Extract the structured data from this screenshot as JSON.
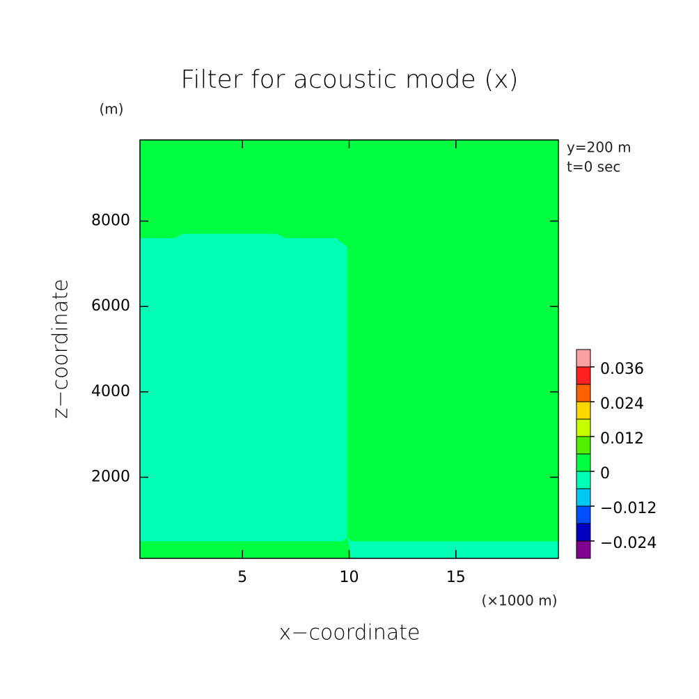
{
  "chart_data": {
    "type": "contour",
    "title": "Filter for acoustic mode (x)",
    "y_unit": "(m)",
    "x_unit": "(×1000 m)",
    "xlabel": "x−coordinate",
    "ylabel": "z−coordinate",
    "annotations": [
      "y=200 m",
      "t=0 sec"
    ],
    "xlim": [
      0.2,
      19.8
    ],
    "ylim": [
      100,
      9900
    ],
    "xticks": [
      5,
      10,
      15
    ],
    "yticks": [
      2000,
      4000,
      6000,
      8000
    ],
    "background_color": "#00ff40",
    "regions": [
      {
        "color": "#00ffb4",
        "x": [
          0.2,
          1.8,
          2.2,
          6.6,
          7.0,
          9.4,
          9.9,
          9.9,
          9.7,
          0.2
        ],
        "z": [
          7600,
          7600,
          7700,
          7700,
          7600,
          7600,
          7400,
          600,
          500,
          500
        ]
      },
      {
        "color": "#00ffb4",
        "x": [
          9.9,
          10.1,
          19.8,
          19.8,
          10.1
        ],
        "z": [
          600,
          500,
          500,
          100,
          100
        ]
      }
    ],
    "levels": [
      -0.03,
      -0.024,
      -0.018,
      -0.012,
      -0.006,
      0,
      0.006,
      0.012,
      0.018,
      0.024,
      0.03,
      0.036,
      0.042
    ],
    "colors": [
      "#800090",
      "#0000c0",
      "#0050ff",
      "#00c8f0",
      "#00ffb4",
      "#00ff40",
      "#50f000",
      "#c8ff00",
      "#ffd700",
      "#ff6000",
      "#ff2020",
      "#f9a0a0"
    ],
    "colorbar_ticks": [
      {
        "value": -0.024,
        "label": "−0.024"
      },
      {
        "value": -0.012,
        "label": "−0.012"
      },
      0,
      0.012,
      0.024,
      0.036
    ]
  }
}
